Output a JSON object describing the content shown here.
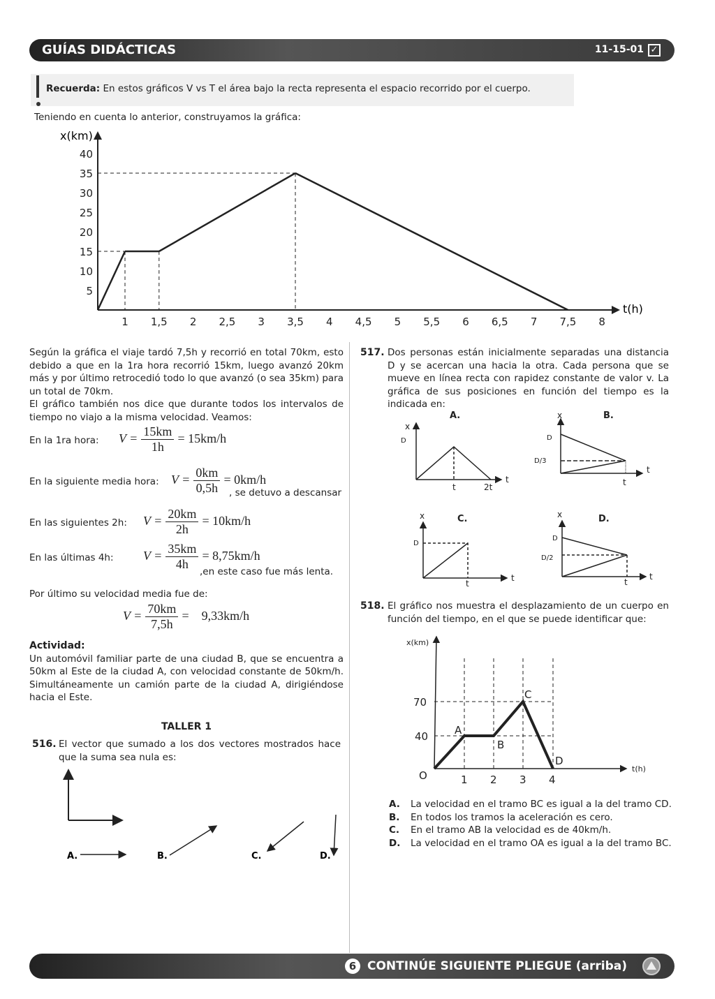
{
  "header": {
    "title": "GUÍAS  DIDÁCTICAS",
    "code": "11-15-01",
    "check_icon": "checkbox-checked-icon"
  },
  "recuerda": {
    "label": "Recuerda:",
    "text": " En estos gráficos V vs T el área bajo la recta representa el espacio recorrido por el cuerpo."
  },
  "intro": "Teniendo en cuenta lo anterior, construyamos la gráfica:",
  "chart_data": {
    "type": "line",
    "xlabel": "t(h)",
    "ylabel": "x(km)",
    "x_ticks": [
      "1",
      "1,5",
      "2",
      "2,5",
      "3",
      "3,5",
      "4",
      "4,5",
      "5",
      "5,5",
      "6",
      "6,5",
      "7",
      "7,5",
      "8"
    ],
    "y_ticks": [
      "5",
      "10",
      "15",
      "20",
      "25",
      "30",
      "35",
      "40"
    ],
    "points": [
      [
        0,
        0
      ],
      [
        1,
        15
      ],
      [
        1.5,
        15
      ],
      [
        3.5,
        35
      ],
      [
        7.5,
        0
      ]
    ],
    "xlim": [
      0,
      8
    ],
    "ylim": [
      0,
      40
    ],
    "grid": false
  },
  "left": {
    "p1": "Según la gráfica el viaje tardó 7,5h y recorrió en total 70km, esto debido a que en la 1ra hora recorrió 15km, luego avanzó 20km más y por último retrocedió todo lo que avanzó (o sea 35km) para un total de 70km.",
    "p2": "El gráfico también nos dice que durante todos los intervalos de tiempo no viajo a la misma velocidad. Veamos:",
    "eqs": [
      {
        "label": "En la 1ra hora:",
        "num": "15km",
        "den": "1h",
        "result": "= 15km/h",
        "note": ""
      },
      {
        "label": "En la siguiente media hora:",
        "num": "0km",
        "den": "0,5h",
        "result": "= 0km/h",
        "note": ", se detuvo a descansar"
      },
      {
        "label": "En las siguientes 2h:",
        "num": "20km",
        "den": "2h",
        "result": "= 10km/h",
        "note": ""
      },
      {
        "label": "En las últimas 4h:",
        "num": "35km",
        "den": "4h",
        "result": "= 8,75km/h",
        "note": ",en este caso fue más lenta."
      }
    ],
    "v": "V =",
    "p3": "Por último su velocidad media fue de:",
    "final": {
      "num": "70km",
      "den": "7,5h",
      "result": "=    9,33km/h"
    },
    "actividad_title": "Actividad:",
    "actividad": "Un automóvil familiar parte de una ciudad B, que se encuentra a 50km al Este de la ciudad A, con velocidad constante de 50km/h. Simultáneamente un camión parte de la ciudad A, dirigiéndose hacia el Este.",
    "taller": "TALLER 1",
    "q516": {
      "num": "516.",
      "text": "El vector que sumado a los dos vectores mostrados hace que la suma sea nula es:",
      "options": [
        "A.",
        "B.",
        "C.",
        "D."
      ]
    }
  },
  "q517": {
    "num": "517.",
    "text": "Dos personas están inicialmente separadas una distancia D y se acercan una hacia la otra. Cada persona que se mueve en línea recta con rapidez constante de valor v. La gráfica de sus posiciones en función del tiempo es la indicada en:",
    "graphs": [
      {
        "label": "A.",
        "x": "x",
        "t": "t",
        "D": "D",
        "t1": "t",
        "t2": "2t"
      },
      {
        "label": "B.",
        "x": "x",
        "t": "t",
        "D": "D",
        "mid": "D/3",
        "t1": "t"
      },
      {
        "label": "C.",
        "x": "x",
        "t": "t",
        "D": "D",
        "t1": "t"
      },
      {
        "label": "D.",
        "x": "x",
        "t": "t",
        "D": "D",
        "mid": "D/2",
        "t1": "t"
      }
    ]
  },
  "q518": {
    "num": "518.",
    "text": "El gráfico nos muestra el desplazamiento de un cuerpo en función del tiempo, en el que se puede identificar que:",
    "graph": {
      "ylabel": "x(km)",
      "xlabel": "t(h)",
      "y70": "70",
      "y40": "40",
      "o": "O",
      "ticks": [
        "1",
        "2",
        "3",
        "4"
      ],
      "A": "A",
      "B": "B",
      "C": "C",
      "D": "D"
    },
    "options": [
      {
        "l": "A.",
        "t": "La velocidad en el tramo BC es igual a la del tramo CD."
      },
      {
        "l": "B.",
        "t": "En todos los tramos la aceleración es cero."
      },
      {
        "l": "C.",
        "t": "En el tramo AB la velocidad es de 40km/h."
      },
      {
        "l": "D.",
        "t": "La velocidad en el tramo OA es igual a la del tramo BC."
      }
    ]
  },
  "footer": {
    "page": "6",
    "text": "CONTINÚE SIGUIENTE PLIEGUE (arriba)",
    "icon": "triangle-up-circle-icon"
  }
}
